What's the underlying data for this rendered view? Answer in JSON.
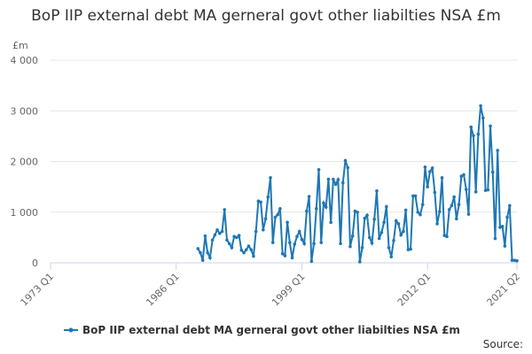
{
  "chart_data": {
    "type": "line",
    "title": "BoP IIP external debt MA gerneral govt other liabilties NSA £m",
    "y_axis_label": "£m",
    "source": "Source:",
    "categories": [
      "1973 Q1",
      null,
      null,
      null,
      null,
      null,
      null,
      null,
      null,
      null,
      null,
      null,
      null,
      null,
      null,
      null,
      null,
      null,
      null,
      null,
      null,
      null,
      null,
      null,
      null,
      null,
      null,
      null,
      null,
      null,
      null,
      null,
      null,
      null,
      null,
      null,
      null,
      null,
      null,
      null,
      null,
      null,
      null,
      null,
      null,
      null,
      null,
      null,
      null,
      null,
      null,
      null,
      "1986 Q1",
      null,
      null,
      null,
      null,
      null,
      null,
      null,
      null,
      null,
      null,
      null,
      null,
      null,
      null,
      null,
      null,
      null,
      null,
      null,
      null,
      null,
      null,
      null,
      null,
      null,
      null,
      null,
      null,
      null,
      null,
      null,
      null,
      null,
      null,
      null,
      null,
      null,
      null,
      null,
      null,
      null,
      null,
      null,
      null,
      null,
      null,
      null,
      null,
      null,
      null,
      null,
      "1999 Q1",
      null,
      null,
      null,
      null,
      null,
      null,
      null,
      null,
      null,
      null,
      null,
      null,
      null,
      null,
      null,
      null,
      null,
      null,
      null,
      null,
      null,
      null,
      null,
      null,
      null,
      null,
      null,
      null,
      null,
      null,
      null,
      null,
      null,
      null,
      null,
      null,
      null,
      null,
      null,
      null,
      null,
      null,
      null,
      null,
      null,
      null,
      null,
      null,
      null,
      null,
      null,
      "2012 Q1",
      null,
      null,
      null,
      null,
      null,
      null,
      null,
      null,
      null,
      null,
      null,
      null,
      null,
      null,
      null,
      null,
      null,
      null,
      null,
      null,
      null,
      null,
      null,
      null,
      null,
      null,
      null,
      null,
      null,
      null,
      null,
      null,
      null,
      null,
      null,
      null,
      "2021 Q2"
    ],
    "series": [
      {
        "name": "BoP IIP external debt MA gerneral govt other liabilties NSA £m",
        "color": "#1f77b4",
        "values": [
          null,
          null,
          null,
          null,
          null,
          null,
          null,
          null,
          null,
          null,
          null,
          null,
          null,
          null,
          null,
          null,
          null,
          null,
          null,
          null,
          null,
          null,
          null,
          null,
          null,
          null,
          null,
          null,
          null,
          null,
          null,
          null,
          null,
          null,
          null,
          null,
          null,
          null,
          null,
          null,
          null,
          null,
          null,
          null,
          null,
          null,
          null,
          null,
          null,
          null,
          null,
          null,
          null,
          null,
          null,
          null,
          null,
          null,
          null,
          null,
          null,
          280,
          200,
          50,
          530,
          200,
          100,
          450,
          550,
          650,
          580,
          620,
          1050,
          450,
          380,
          300,
          520,
          500,
          540,
          250,
          200,
          260,
          330,
          260,
          130,
          620,
          1220,
          1200,
          650,
          870,
          1300,
          1680,
          400,
          900,
          950,
          1070,
          180,
          140,
          800,
          400,
          100,
          370,
          520,
          620,
          460,
          380,
          1020,
          1310,
          30,
          380,
          1070,
          1840,
          400,
          1180,
          1100,
          1650,
          800,
          1650,
          1550,
          1640,
          380,
          1580,
          2020,
          1880,
          320,
          530,
          1020,
          1000,
          20,
          300,
          880,
          940,
          500,
          390,
          860,
          1420,
          480,
          600,
          800,
          1110,
          300,
          120,
          440,
          830,
          770,
          550,
          620,
          1040,
          260,
          270,
          1320,
          1320,
          1000,
          950,
          1150,
          1890,
          1500,
          1800,
          1870,
          1390,
          770,
          1010,
          1680,
          540,
          520,
          1050,
          1130,
          1300,
          870,
          1150,
          1710,
          1740,
          1450,
          960,
          2680,
          2510,
          1400,
          2540,
          3100,
          2860,
          1430,
          1440,
          2700,
          1790,
          480,
          2220,
          700,
          720,
          330,
          900,
          1130,
          50,
          50,
          40
        ]
      }
    ],
    "ylim": [
      0,
      4000
    ],
    "yticks": [
      0,
      {
        "value": 1000,
        "label": "1 000"
      },
      {
        "value": 2000,
        "label": "2 000"
      },
      {
        "value": 3000,
        "label": "3 000"
      },
      {
        "value": 4000,
        "label": "4 000"
      }
    ],
    "grid": true
  }
}
